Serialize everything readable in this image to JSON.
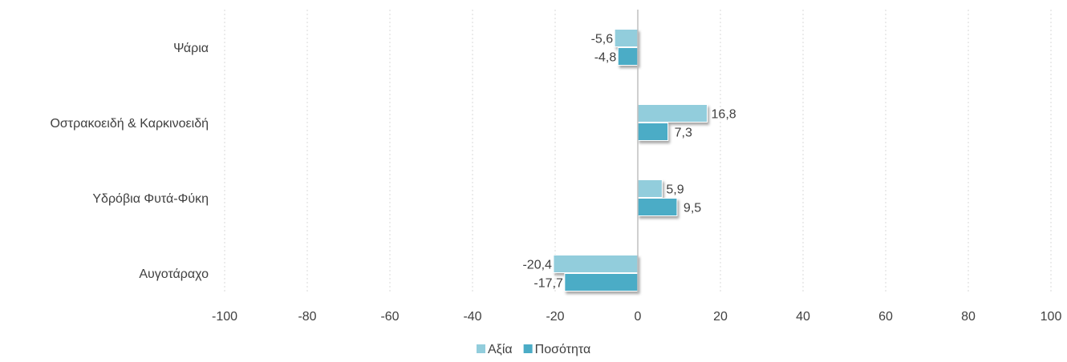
{
  "chart_data": {
    "type": "bar",
    "orientation": "horizontal",
    "categories": [
      "Ψάρια",
      "Οστρακοειδή & Καρκινοειδή",
      "Υδρόβια Φυτά-Φύκη",
      "Αυγοτάραχο"
    ],
    "series": [
      {
        "name": "Αξία",
        "values": [
          -5.6,
          16.8,
          5.9,
          -20.4
        ],
        "labels": [
          "-5,6",
          "16,8",
          "5,9",
          "-20,4"
        ],
        "color": "#92CDDC"
      },
      {
        "name": "Ποσότητα",
        "values": [
          -4.8,
          7.3,
          9.5,
          -17.7
        ],
        "labels": [
          "-4,8",
          "7,3",
          "9,5",
          "-17,7"
        ],
        "color": "#4BACC6"
      }
    ],
    "xlim": [
      -100,
      100
    ],
    "xticks": [
      -100,
      -80,
      -60,
      -40,
      -20,
      0,
      20,
      40,
      60,
      80,
      100
    ],
    "xtick_labels": [
      "-100",
      "-80",
      "-60",
      "-40",
      "-20",
      "0",
      "20",
      "40",
      "60",
      "80",
      "100"
    ],
    "grid": "vertical dotted",
    "legend_position": "bottom",
    "title": "",
    "xlabel": "",
    "ylabel": ""
  }
}
